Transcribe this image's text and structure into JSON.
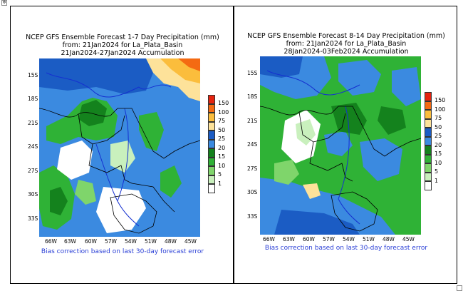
{
  "colorbar": {
    "levels": [
      {
        "value": "150",
        "color": "#e5230f"
      },
      {
        "value": "100",
        "color": "#f46a12"
      },
      {
        "value": "75",
        "color": "#fbbd3c"
      },
      {
        "value": "50",
        "color": "#fde29a"
      },
      {
        "value": "25",
        "color": "#1b5cc4"
      },
      {
        "value": "20",
        "color": "#3b8ae0"
      },
      {
        "value": "15",
        "color": "#14821d"
      },
      {
        "value": "10",
        "color": "#2fb236"
      },
      {
        "value": "5",
        "color": "#7fd56b"
      },
      {
        "value": "1",
        "color": "#c9f0bd"
      },
      {
        "value": "",
        "color": "#ffffff"
      }
    ],
    "bottom_label": "1"
  },
  "panels": [
    {
      "title_line1": "NCEP GFS Ensemble Forecast 1-7 Day Precipitation (mm)",
      "title_line2": "from: 21Jan2024  for La_Plata_Basin",
      "title_line3": "21Jan2024-27Jan2024 Accumulation",
      "lat_labels": [
        "15S",
        "18S",
        "21S",
        "24S",
        "27S",
        "30S",
        "33S"
      ],
      "lon_labels": [
        "66W",
        "63W",
        "60W",
        "57W",
        "54W",
        "51W",
        "48W",
        "45W"
      ],
      "caption": "Bias correction based on last 30-day forecast error"
    },
    {
      "title_line1": "NCEP GFS Ensemble Forecast 8-14 Day Precipitation (mm)",
      "title_line2": "from: 21Jan2024  for La_Plata_Basin",
      "title_line3": "28Jan2024-03Feb2024 Accumulation",
      "lat_labels": [
        "15S",
        "18S",
        "21S",
        "24S",
        "27S",
        "30S",
        "33S"
      ],
      "lon_labels": [
        "66W",
        "63W",
        "60W",
        "57W",
        "54W",
        "51W",
        "48W",
        "45W"
      ],
      "caption": "Bias correction based on last 30-day forecast error"
    }
  ],
  "colors": {
    "base_blue": "#3b8ae0",
    "dark_blue": "#1b5cc4",
    "caption_blue": "#2a3fd6",
    "boundary": "#000000",
    "river": "#1530d0"
  }
}
